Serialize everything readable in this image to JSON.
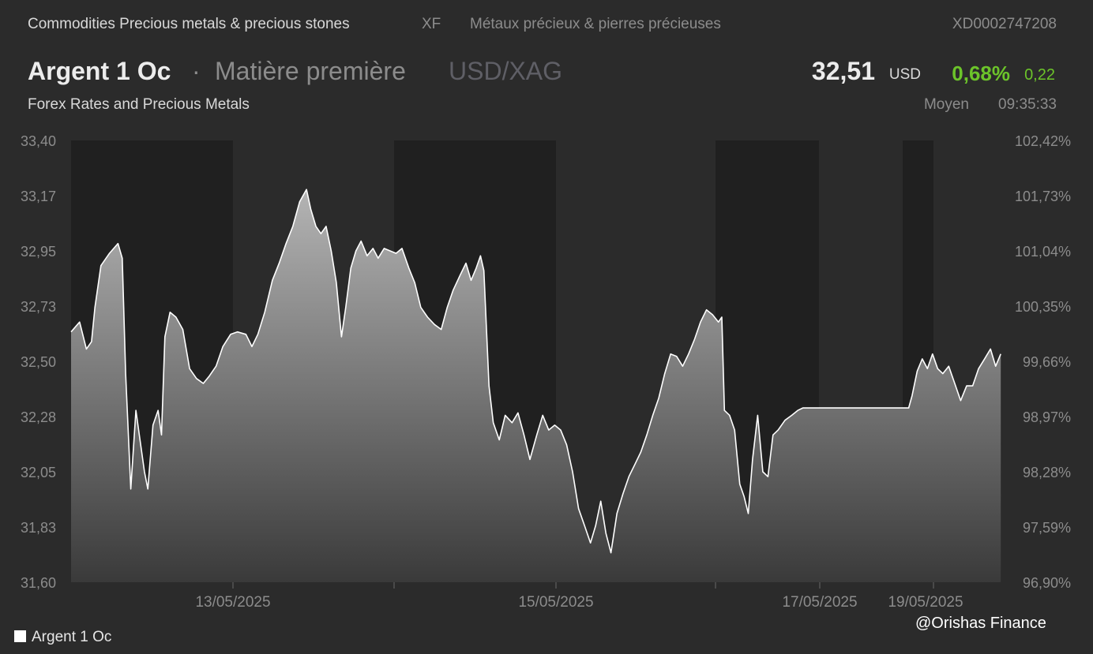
{
  "header": {
    "category": "Commodities Precious metals & precious stones",
    "exchange": "XF",
    "category_fr": "Métaux précieux & pierres précieuses",
    "isin": "XD0002747208",
    "name": "Argent 1 Oc",
    "separator": "·",
    "type": "Matière première",
    "pair": "USD/XAG",
    "price": "32,51",
    "currency": "USD",
    "change_pct": "0,68%",
    "change_abs": "0,22",
    "source": "Forex Rates and Precious Metals",
    "mode": "Moyen",
    "time": "09:35:33"
  },
  "colors": {
    "background": "#2b2b2b",
    "session_band": "#202020",
    "line": "#ffffff",
    "up": "#6cc42a",
    "muted": "#8c8c8c"
  },
  "legend": {
    "label": "Argent 1 Oc"
  },
  "watermark": "@Orishas Finance",
  "chart_data": {
    "type": "area",
    "title": "Argent 1 Oc",
    "y_ticks_left": [
      "33,40",
      "33,17",
      "32,95",
      "32,73",
      "32,50",
      "32,28",
      "32,05",
      "31,83",
      "31,60"
    ],
    "y_ticks_right": [
      "102,42%",
      "101,73%",
      "101,04%",
      "100,35%",
      "99,66%",
      "98,97%",
      "98,28%",
      "97,59%",
      "96,90%"
    ],
    "ylim": [
      31.6,
      33.4
    ],
    "x_ticks": [
      "13/05/2025",
      "15/05/2025",
      "17/05/2025",
      "19/05/2025"
    ],
    "session_shading": "alternating dark bands per trading session",
    "series": [
      {
        "name": "Argent 1 Oc",
        "points": [
          [
            0.0,
            32.62
          ],
          [
            0.01,
            32.66
          ],
          [
            0.018,
            32.55
          ],
          [
            0.024,
            32.58
          ],
          [
            0.028,
            32.72
          ],
          [
            0.035,
            32.89
          ],
          [
            0.045,
            32.94
          ],
          [
            0.055,
            32.98
          ],
          [
            0.06,
            32.92
          ],
          [
            0.064,
            32.45
          ],
          [
            0.07,
            31.98
          ],
          [
            0.076,
            32.3
          ],
          [
            0.08,
            32.2
          ],
          [
            0.086,
            32.05
          ],
          [
            0.09,
            31.98
          ],
          [
            0.096,
            32.24
          ],
          [
            0.102,
            32.3
          ],
          [
            0.106,
            32.2
          ],
          [
            0.11,
            32.6
          ],
          [
            0.116,
            32.7
          ],
          [
            0.123,
            32.68
          ],
          [
            0.131,
            32.63
          ],
          [
            0.139,
            32.47
          ],
          [
            0.147,
            32.43
          ],
          [
            0.155,
            32.41
          ],
          [
            0.162,
            32.44
          ],
          [
            0.17,
            32.48
          ],
          [
            0.178,
            32.56
          ],
          [
            0.187,
            32.61
          ],
          [
            0.195,
            32.62
          ],
          [
            0.205,
            32.61
          ],
          [
            0.212,
            32.56
          ],
          [
            0.219,
            32.61
          ],
          [
            0.227,
            32.7
          ],
          [
            0.236,
            32.83
          ],
          [
            0.244,
            32.9
          ],
          [
            0.252,
            32.98
          ],
          [
            0.26,
            33.05
          ],
          [
            0.268,
            33.15
          ],
          [
            0.276,
            33.2
          ],
          [
            0.281,
            33.12
          ],
          [
            0.287,
            33.05
          ],
          [
            0.293,
            33.02
          ],
          [
            0.299,
            33.05
          ],
          [
            0.305,
            32.95
          ],
          [
            0.311,
            32.82
          ],
          [
            0.317,
            32.6
          ],
          [
            0.322,
            32.72
          ],
          [
            0.328,
            32.88
          ],
          [
            0.334,
            32.95
          ],
          [
            0.34,
            32.99
          ],
          [
            0.347,
            32.93
          ],
          [
            0.354,
            32.96
          ],
          [
            0.36,
            32.92
          ],
          [
            0.367,
            32.96
          ],
          [
            0.374,
            32.95
          ],
          [
            0.381,
            32.94
          ],
          [
            0.388,
            32.96
          ],
          [
            0.396,
            32.88
          ],
          [
            0.403,
            32.82
          ],
          [
            0.41,
            32.72
          ],
          [
            0.418,
            32.68
          ],
          [
            0.426,
            32.65
          ],
          [
            0.434,
            32.63
          ],
          [
            0.441,
            32.72
          ],
          [
            0.448,
            32.79
          ],
          [
            0.456,
            32.85
          ],
          [
            0.463,
            32.9
          ],
          [
            0.469,
            32.83
          ],
          [
            0.475,
            32.88
          ],
          [
            0.48,
            32.93
          ],
          [
            0.484,
            32.87
          ],
          [
            0.49,
            32.4
          ],
          [
            0.495,
            32.25
          ],
          [
            0.502,
            32.18
          ],
          [
            0.509,
            32.28
          ],
          [
            0.517,
            32.25
          ],
          [
            0.524,
            32.29
          ],
          [
            0.531,
            32.2
          ],
          [
            0.538,
            32.1
          ],
          [
            0.546,
            32.2
          ],
          [
            0.553,
            32.28
          ],
          [
            0.56,
            32.22
          ],
          [
            0.567,
            32.24
          ],
          [
            0.574,
            32.22
          ],
          [
            0.581,
            32.16
          ],
          [
            0.588,
            32.05
          ],
          [
            0.595,
            31.9
          ],
          [
            0.602,
            31.83
          ],
          [
            0.609,
            31.76
          ],
          [
            0.615,
            31.83
          ],
          [
            0.621,
            31.93
          ],
          [
            0.627,
            31.8
          ],
          [
            0.633,
            31.72
          ],
          [
            0.64,
            31.88
          ],
          [
            0.647,
            31.96
          ],
          [
            0.654,
            32.03
          ],
          [
            0.661,
            32.08
          ],
          [
            0.668,
            32.13
          ],
          [
            0.675,
            32.2
          ],
          [
            0.682,
            32.28
          ],
          [
            0.689,
            32.35
          ],
          [
            0.696,
            32.45
          ],
          [
            0.703,
            32.53
          ],
          [
            0.71,
            32.52
          ],
          [
            0.717,
            32.48
          ],
          [
            0.724,
            32.53
          ],
          [
            0.731,
            32.59
          ],
          [
            0.738,
            32.66
          ],
          [
            0.745,
            32.71
          ],
          [
            0.752,
            32.69
          ],
          [
            0.759,
            32.66
          ],
          [
            0.763,
            32.68
          ],
          [
            0.766,
            32.3
          ],
          [
            0.772,
            32.28
          ],
          [
            0.778,
            32.22
          ],
          [
            0.784,
            32.0
          ],
          [
            0.789,
            31.95
          ],
          [
            0.794,
            31.88
          ],
          [
            0.799,
            32.1
          ],
          [
            0.805,
            32.28
          ],
          [
            0.811,
            32.05
          ],
          [
            0.817,
            32.03
          ],
          [
            0.823,
            32.2
          ],
          [
            0.829,
            32.22
          ],
          [
            0.837,
            32.26
          ],
          [
            0.845,
            32.28
          ],
          [
            0.852,
            32.3
          ],
          [
            0.858,
            32.31
          ],
          [
            0.9,
            32.31
          ],
          [
            0.95,
            32.31
          ],
          [
            0.982,
            32.31
          ],
          [
            0.986,
            32.36
          ],
          [
            0.992,
            32.46
          ],
          [
            0.998,
            32.51
          ],
          [
            1.004,
            32.47
          ],
          [
            1.01,
            32.53
          ],
          [
            1.016,
            32.47
          ],
          [
            1.022,
            32.45
          ],
          [
            1.029,
            32.48
          ],
          [
            1.036,
            32.41
          ],
          [
            1.043,
            32.34
          ],
          [
            1.05,
            32.4
          ],
          [
            1.057,
            32.4
          ],
          [
            1.064,
            32.47
          ],
          [
            1.071,
            32.51
          ],
          [
            1.078,
            32.55
          ],
          [
            1.084,
            32.48
          ],
          [
            1.09,
            32.53
          ]
        ]
      }
    ]
  }
}
